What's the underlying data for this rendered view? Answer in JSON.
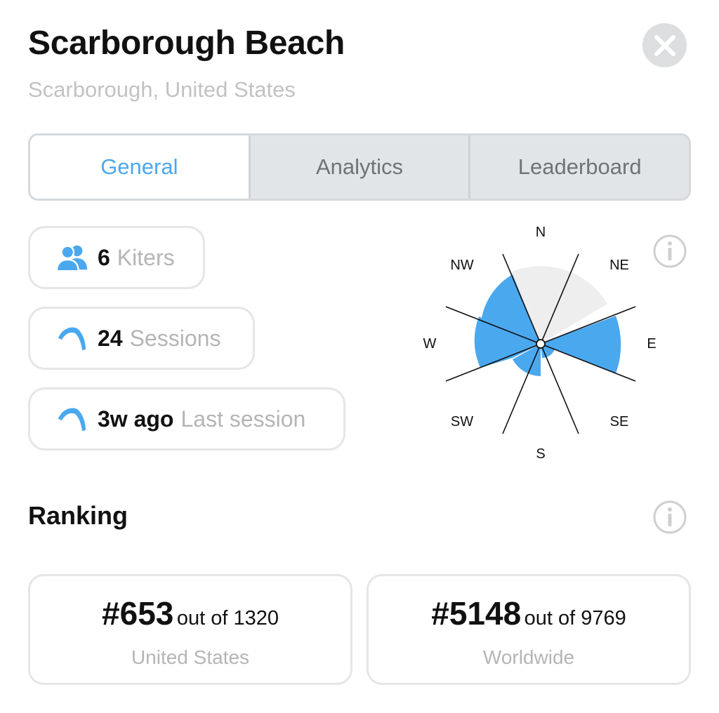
{
  "header": {
    "title": "Scarborough Beach",
    "subtitle": "Scarborough, United States"
  },
  "tabs": [
    {
      "label": "General",
      "active": true
    },
    {
      "label": "Analytics",
      "active": false
    },
    {
      "label": "Leaderboard",
      "active": false
    }
  ],
  "stats": [
    {
      "icon": "users-icon",
      "value": "6",
      "label": "Kiters"
    },
    {
      "icon": "kite-icon",
      "value": "24",
      "label": "Sessions"
    },
    {
      "icon": "kite-icon",
      "value": "3w ago",
      "label": "Last session"
    }
  ],
  "wind_rose": {
    "directions": [
      "N",
      "NE",
      "E",
      "SE",
      "S",
      "SW",
      "W",
      "NW"
    ],
    "colors": {
      "active": "#4aa8ef",
      "inactive": "#eeeeee",
      "line": "#111111"
    }
  },
  "ranking": {
    "title": "Ranking",
    "cards": [
      {
        "rank": "#653",
        "out_of": "out of 1320",
        "region": "United States"
      },
      {
        "rank": "#5148",
        "out_of": "out of 9769",
        "region": "Worldwide"
      }
    ]
  },
  "colors": {
    "accent": "#4aa8ef",
    "muted_text": "#b5b5b5",
    "tab_bg": "#e2e5e8"
  }
}
